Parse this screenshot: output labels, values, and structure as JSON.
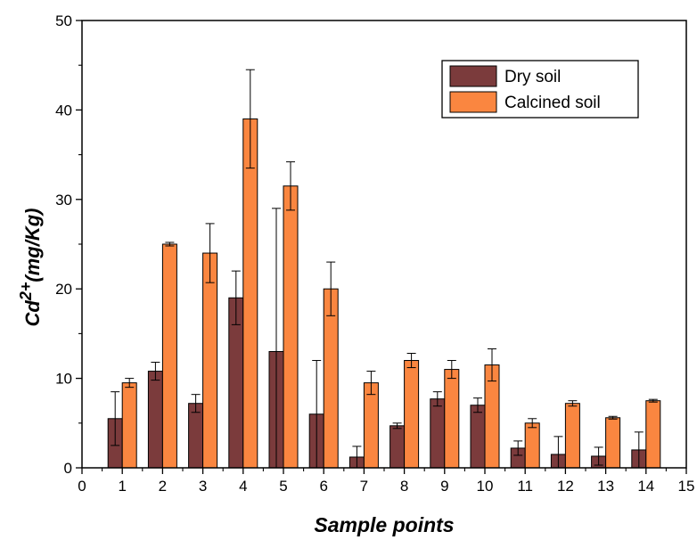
{
  "chart_data": {
    "type": "bar",
    "title": "",
    "xlabel": "Sample points",
    "ylabel_base": "Cd",
    "ylabel_sup": "2+",
    "ylabel_unit": "(mg/Kg)",
    "xlim": [
      0,
      15
    ],
    "ylim": [
      0,
      50
    ],
    "xticks": [
      0,
      1,
      2,
      3,
      4,
      5,
      6,
      7,
      8,
      9,
      10,
      11,
      12,
      13,
      14,
      15
    ],
    "yticks": [
      0,
      10,
      20,
      30,
      40,
      50
    ],
    "categories": [
      1,
      2,
      3,
      4,
      5,
      6,
      7,
      8,
      9,
      10,
      11,
      12,
      13,
      14
    ],
    "legend_position": "top-right",
    "grid": false,
    "series": [
      {
        "name": "Dry soil",
        "color": "#7b3b3c",
        "values": [
          5.5,
          10.8,
          7.2,
          19.0,
          13.0,
          6.0,
          1.2,
          4.7,
          7.7,
          7.0,
          2.2,
          1.5,
          1.3,
          2.0
        ],
        "errors": [
          3.0,
          1.0,
          1.0,
          3.0,
          16.0,
          6.0,
          1.2,
          0.3,
          0.8,
          0.8,
          0.8,
          2.0,
          1.0,
          2.0
        ]
      },
      {
        "name": "Calcined soil",
        "color": "#fa8640",
        "values": [
          9.5,
          25.0,
          24.0,
          39.0,
          31.5,
          20.0,
          9.5,
          12.0,
          11.0,
          11.5,
          5.0,
          7.2,
          5.6,
          7.5
        ],
        "errors": [
          0.5,
          0.2,
          3.3,
          5.5,
          2.7,
          3.0,
          1.3,
          0.8,
          1.0,
          1.8,
          0.5,
          0.3,
          0.15,
          0.15
        ]
      }
    ]
  }
}
